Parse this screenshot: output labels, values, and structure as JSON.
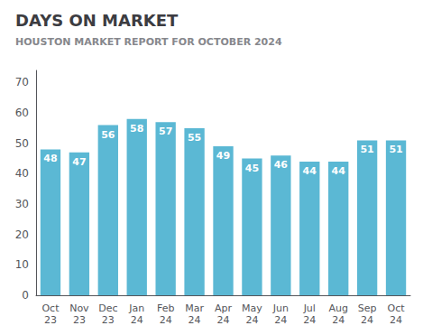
{
  "chart_data": {
    "type": "bar",
    "title": "DAYS ON MARKET",
    "subtitle": "HOUSTON MARKET REPORT FOR OCTOBER 2024",
    "categories": [
      "Oct\n23",
      "Nov\n23",
      "Dec\n23",
      "Jan\n24",
      "Feb\n24",
      "Mar\n24",
      "Apr\n24",
      "May\n24",
      "Jun\n24",
      "Jul\n24",
      "Aug\n24",
      "Sep\n24",
      "Oct\n24"
    ],
    "values": [
      48,
      47,
      56,
      58,
      57,
      55,
      49,
      45,
      46,
      44,
      44,
      51,
      51
    ],
    "color": "#5bb8d4",
    "ylim": [
      0,
      74
    ],
    "yticks": [
      0,
      10,
      20,
      30,
      40,
      50,
      60,
      70
    ],
    "grid": false,
    "data_labels": true
  }
}
